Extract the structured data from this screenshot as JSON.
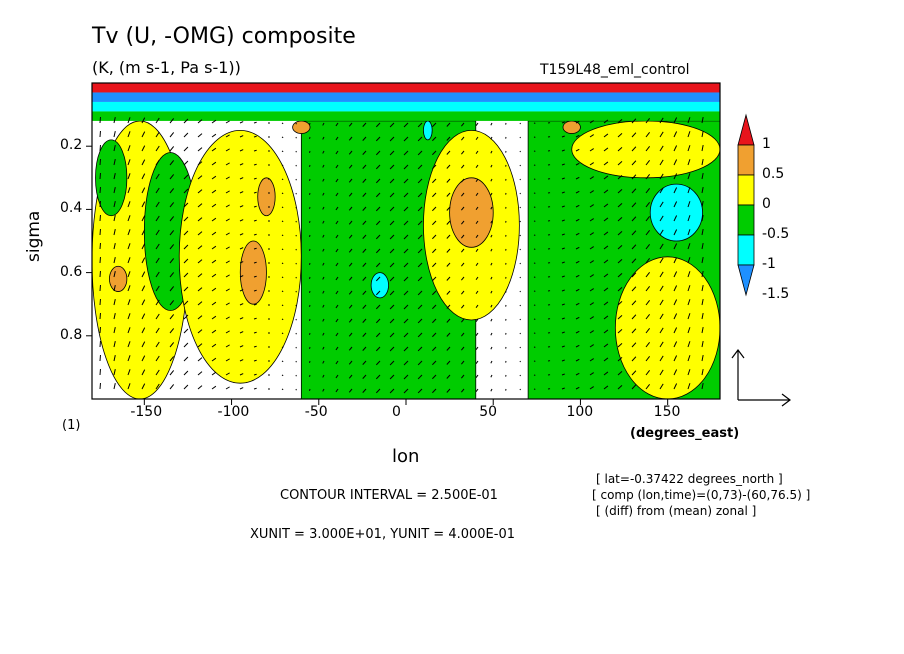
{
  "chart_data": {
    "type": "heatmap",
    "title": "Tv (U, -OMG) composite",
    "subtitle": "(K, (m s-1, Pa s-1))",
    "run": "T159L48_eml_control",
    "xlabel": "lon",
    "x_unit": "(degrees_east)",
    "ylabel": "sigma",
    "index_label": "(1)",
    "xlim": [
      -180,
      180
    ],
    "ylim": [
      1.0,
      0.0
    ],
    "x_ticks": [
      "-150",
      "-100",
      "-50",
      "0",
      "50",
      "100",
      "150"
    ],
    "x_tick_values": [
      -150,
      -100,
      -50,
      0,
      50,
      100,
      150
    ],
    "y_ticks": [
      "0.2",
      "0.4",
      "0.6",
      "0.8"
    ],
    "y_tick_values": [
      0.2,
      0.4,
      0.6,
      0.8
    ],
    "colorbar": {
      "labels": [
        "1",
        "0.5",
        "0",
        "-0.5",
        "-1",
        "-1.5"
      ],
      "label_values": [
        1,
        0.5,
        0,
        -0.5,
        -1,
        -1.5
      ],
      "colors": [
        "#e8141c",
        "#f0a030",
        "#ffff00",
        "#00cc00",
        "#00ffff",
        "#1e90ff"
      ],
      "bins": [
        [
          1,
          1.5
        ],
        [
          0.5,
          1
        ],
        [
          0,
          0.5
        ],
        [
          -0.5,
          0
        ],
        [
          -1,
          -0.5
        ],
        [
          -1.5,
          -1
        ]
      ]
    },
    "contour_interval": "CONTOUR INTERVAL = 2.500E-01",
    "vector_units": "XUNIT = 3.000E+01, YUNIT = 4.000E-01",
    "info": [
      "[ lat=-0.37422 degrees_north ]",
      "[ comp (lon,time)=(0,73)-(60,76.5) ]",
      "[ (diff) from (mean) zonal ]"
    ],
    "regions": [
      {
        "level": "0 to 0.5",
        "lon": [
          -180,
          -125
        ],
        "sigma": [
          0.12,
          1.0
        ]
      },
      {
        "level": "-0.5 to 0",
        "lon": [
          -178,
          -160
        ],
        "sigma": [
          0.18,
          0.42
        ]
      },
      {
        "level": "-0.5 to 0",
        "lon": [
          -150,
          -120
        ],
        "sigma": [
          0.22,
          0.72
        ]
      },
      {
        "level": "0 to 0.5",
        "lon": [
          -130,
          -60
        ],
        "sigma": [
          0.15,
          0.95
        ]
      },
      {
        "level": "-0.5 to 0",
        "lon": [
          -60,
          40
        ],
        "sigma": [
          0.12,
          1.0
        ]
      },
      {
        "level": "0 to 0.5",
        "lon": [
          10,
          65
        ],
        "sigma": [
          0.15,
          0.75
        ]
      },
      {
        "level": "-0.5 to 0",
        "lon": [
          70,
          180
        ],
        "sigma": [
          0.12,
          1.0
        ]
      },
      {
        "level": "0 to 0.5",
        "lon": [
          95,
          180
        ],
        "sigma": [
          0.12,
          0.3
        ]
      },
      {
        "level": "0 to 0.5",
        "lon": [
          120,
          180
        ],
        "sigma": [
          0.55,
          1.0
        ]
      },
      {
        "level": "0.5 to 1",
        "lon": [
          -95,
          -80
        ],
        "sigma": [
          0.5,
          0.7
        ]
      },
      {
        "level": "0.5 to 1",
        "lon": [
          -170,
          -160
        ],
        "sigma": [
          0.58,
          0.66
        ]
      },
      {
        "level": "0.5 to 1",
        "lon": [
          -85,
          -75
        ],
        "sigma": [
          0.3,
          0.42
        ]
      },
      {
        "level": "0.5 to 1",
        "lon": [
          25,
          50
        ],
        "sigma": [
          0.3,
          0.52
        ]
      },
      {
        "level": "0.5 to 1",
        "lon": [
          -65,
          -55
        ],
        "sigma": [
          0.12,
          0.16
        ]
      },
      {
        "level": "0.5 to 1",
        "lon": [
          90,
          100
        ],
        "sigma": [
          0.12,
          0.16
        ]
      },
      {
        "level": "-1 to -0.5",
        "lon": [
          140,
          170
        ],
        "sigma": [
          0.32,
          0.5
        ]
      },
      {
        "level": "-1 to -0.5",
        "lon": [
          -20,
          -10
        ],
        "sigma": [
          0.6,
          0.68
        ]
      },
      {
        "level": "-1 to -0.5",
        "lon": [
          10,
          15
        ],
        "sigma": [
          0.12,
          0.18
        ]
      }
    ],
    "upper_band": {
      "sigma": [
        0.0,
        0.12
      ],
      "levels": [
        "1 to 1.5",
        "-1.5 to -1",
        "-1 to -0.5",
        "-0.5 to 0"
      ]
    }
  }
}
